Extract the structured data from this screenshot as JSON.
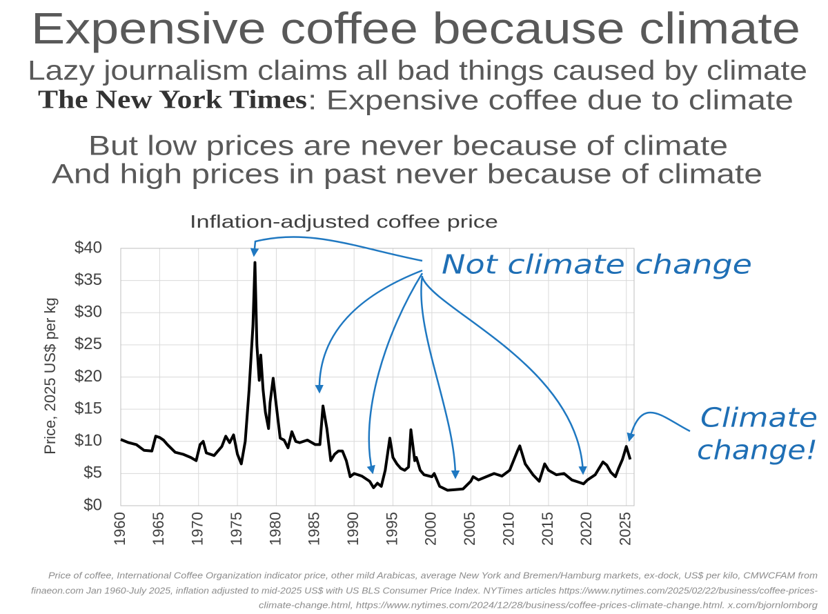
{
  "header": {
    "title": "Expensive coffee because climate",
    "subtitle": "Lazy journalism claims all bad things caused by climate",
    "nyt_masthead": "The New York Times",
    "nyt_headline": ": Expensive coffee due to climate",
    "line_low": "But low prices are never because of climate",
    "line_high": "And high prices in past never because of climate"
  },
  "chart_data": {
    "type": "line",
    "title": "Inflation-adjusted coffee price",
    "y_label": "Price, 2025 US$ per kg",
    "color": "#000000",
    "grid": true,
    "x": [
      1960,
      1961,
      1962,
      1963,
      1964,
      1964.5,
      1965,
      1965.5,
      1966,
      1967,
      1968,
      1969,
      1969.7,
      1970.2,
      1970.6,
      1971,
      1972,
      1972.5,
      1973,
      1973.5,
      1974,
      1974.5,
      1975,
      1975.5,
      1976,
      1976.5,
      1977,
      1977.25,
      1977.5,
      1977.8,
      1978,
      1978.3,
      1978.6,
      1979,
      1979.2,
      1979.6,
      1980,
      1980.5,
      1981,
      1981.5,
      1982,
      1982.5,
      1983,
      1984,
      1985,
      1985.6,
      1986,
      1986.5,
      1987,
      1987.5,
      1988,
      1988.5,
      1989,
      1989.5,
      1990,
      1991,
      1992,
      1992.5,
      1993,
      1993.5,
      1994,
      1994.6,
      1995,
      1995.5,
      1996,
      1996.5,
      1997,
      1997.3,
      1997.8,
      1998,
      1998.5,
      1999,
      2000,
      2000.3,
      2001,
      2002,
      2003,
      2004,
      2005,
      2005.3,
      2006,
      2007,
      2008,
      2009,
      2010,
      2011,
      2011.3,
      2012,
      2013,
      2013.8,
      2014.5,
      2015,
      2016,
      2017,
      2018,
      2019,
      2019.5,
      2020,
      2021,
      2022,
      2022.5,
      2023,
      2023.6,
      2024,
      2024.5,
      2025,
      2025.5
    ],
    "values": [
      10.3,
      9.8,
      9.5,
      8.6,
      8.5,
      10.8,
      10.6,
      10.2,
      9.5,
      8.3,
      8.0,
      7.5,
      7.0,
      9.5,
      10.0,
      8.2,
      7.8,
      8.5,
      9.2,
      10.8,
      9.8,
      11.0,
      8.0,
      6.5,
      10,
      18,
      28,
      37.8,
      25,
      19.5,
      23.4,
      18,
      14.5,
      12,
      16,
      19.8,
      15.5,
      10.5,
      10.2,
      9.0,
      11.5,
      10,
      9.8,
      10.2,
      9.5,
      9.5,
      15.5,
      12,
      7,
      8,
      8.5,
      8.5,
      7,
      4.5,
      5,
      4.6,
      3.8,
      2.8,
      3.5,
      3.0,
      5.5,
      10.5,
      7.5,
      6.5,
      5.8,
      5.5,
      6,
      11.8,
      7,
      7.5,
      5.5,
      4.8,
      4.5,
      5.0,
      3.0,
      2.4,
      2.5,
      2.6,
      3.8,
      4.5,
      4.0,
      4.5,
      5.0,
      4.6,
      5.5,
      8.5,
      9.3,
      6.5,
      4.8,
      3.8,
      6.5,
      5.5,
      4.8,
      5.0,
      4.0,
      3.6,
      3.4,
      4.0,
      4.8,
      6.8,
      6.3,
      5.2,
      4.5,
      5.8,
      7.2,
      9.2,
      7.2
    ],
    "xlim": [
      1960,
      2026
    ],
    "xticks": [
      1960,
      1965,
      1970,
      1975,
      1980,
      1985,
      1990,
      1995,
      2000,
      2005,
      2010,
      2015,
      2020,
      2025
    ],
    "ylim": [
      0,
      40
    ],
    "yticks": [
      {
        "value": 0,
        "label": "$0"
      },
      {
        "value": 5,
        "label": "$5"
      },
      {
        "value": 10,
        "label": "$10"
      },
      {
        "value": 15,
        "label": "$15"
      },
      {
        "value": 20,
        "label": "$20"
      },
      {
        "value": 25,
        "label": "$25"
      },
      {
        "value": 30,
        "label": "$30"
      },
      {
        "value": 35,
        "label": "$35"
      },
      {
        "value": 40,
        "label": "$40"
      }
    ],
    "annotations": [
      "Not climate change",
      "Climate",
      "change!"
    ]
  },
  "footnote": [
    "Price of coffee, International Coffee Organization indicator price, other mild Arabicas, average New York and Bremen/Hamburg markets, ex-dock, US$ per kilo, CMWCFAM from",
    "finaeon.com Jan 1960-July 2025, inflation adjusted to mid-2025 US$ with US BLS Consumer Price Index. NYTimes articles https://www.nytimes.com/2025/02/22/business/coffee-prices-",
    "climate-change.html, https://www.nytimes.com/2024/12/28/business/coffee-prices-climate-change.html. x.com/bjornlomborg"
  ]
}
